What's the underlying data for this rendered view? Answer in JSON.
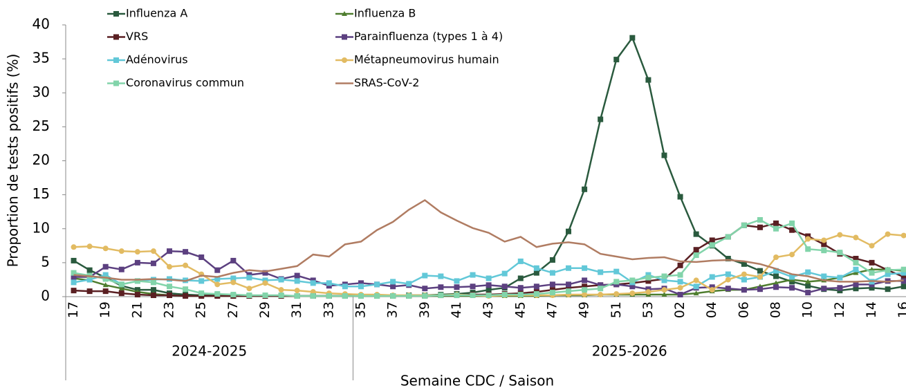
{
  "chart_data": {
    "type": "line",
    "ylabel": "Proportion de tests positifs (%)",
    "xlabel": "Semaine CDC / Saison",
    "ylim": [
      0,
      40
    ],
    "yticks": [
      0,
      5,
      10,
      15,
      20,
      25,
      30,
      35,
      40
    ],
    "groups": [
      {
        "label": "2024-2025",
        "categories": [
          "17",
          null,
          "19",
          null,
          "21",
          null,
          "23",
          null,
          "25",
          null,
          "27",
          null,
          "29",
          null,
          "31",
          null,
          "33",
          null
        ]
      },
      {
        "label": "2025-2026",
        "categories": [
          "35",
          null,
          "37",
          null,
          "39",
          null,
          "41",
          null,
          "43",
          null,
          "45",
          null,
          "47",
          null,
          "49",
          null,
          "51",
          null,
          "53",
          null,
          "02",
          null,
          "04",
          null,
          "06",
          null,
          "08",
          null,
          "10",
          null,
          "12",
          null,
          "14",
          null,
          "16"
        ]
      }
    ],
    "series": [
      {
        "name": "Influenza A",
        "color": "#2a5a3e",
        "marker": "square",
        "values": [
          5.3,
          3.9,
          2.8,
          1.6,
          1.0,
          1.0,
          0.5,
          0.3,
          0.2,
          0.2,
          0.1,
          0.1,
          0.1,
          0.1,
          0.1,
          0.1,
          0.1,
          0.1,
          0.1,
          0.1,
          0.1,
          0.2,
          0.2,
          0.3,
          0.4,
          0.6,
          1.0,
          1.3,
          2.7,
          3.5,
          5.4,
          9.6,
          15.8,
          26.1,
          34.9,
          38.1,
          31.9,
          20.8,
          14.7,
          9.2,
          7.5,
          5.6,
          4.8,
          3.8,
          3.0,
          2.2,
          1.6,
          1.1,
          0.9,
          1.2,
          1.3,
          1.1,
          1.5
        ]
      },
      {
        "name": "Influenza B",
        "color": "#4e7d2e",
        "marker": "triangle",
        "values": [
          2.7,
          2.4,
          1.7,
          1.2,
          0.7,
          0.4,
          0.2,
          0.1,
          0.1,
          0.1,
          0.1,
          0.1,
          0.1,
          0.1,
          0.1,
          0.1,
          0.1,
          0.1,
          0.1,
          0.1,
          0.1,
          0.1,
          0.1,
          0.1,
          0.1,
          0.1,
          0.1,
          0.1,
          0.1,
          0.1,
          0.2,
          0.2,
          0.2,
          0.3,
          0.3,
          0.3,
          0.3,
          0.3,
          0.3,
          0.5,
          0.8,
          1.0,
          1.0,
          1.5,
          2.0,
          2.5,
          2.2,
          2.4,
          2.8,
          3.5,
          4.0,
          4.0,
          3.8
        ]
      },
      {
        "name": "VRS",
        "color": "#5a1f22",
        "marker": "square",
        "values": [
          0.9,
          0.8,
          0.8,
          0.5,
          0.3,
          0.2,
          0.2,
          0.1,
          0.1,
          0.1,
          0.1,
          0.1,
          0.1,
          0.1,
          0.1,
          0.1,
          0.1,
          0.1,
          0.1,
          0.1,
          0.1,
          0.1,
          0.1,
          0.2,
          0.2,
          0.3,
          0.3,
          0.4,
          0.5,
          0.7,
          1.0,
          1.3,
          1.5,
          1.7,
          1.8,
          2.0,
          2.3,
          2.6,
          4.6,
          6.9,
          8.3,
          8.8,
          10.5,
          10.2,
          10.8,
          9.8,
          8.9,
          7.7,
          6.3,
          5.6,
          5.0,
          3.9,
          2.9
        ]
      },
      {
        "name": "Parainfluenza (types 1 à 4)",
        "color": "#5c4080",
        "marker": "square",
        "values": [
          2.9,
          2.9,
          4.4,
          4.0,
          5.0,
          4.9,
          6.7,
          6.6,
          5.8,
          3.9,
          5.3,
          3.2,
          3.5,
          2.6,
          3.1,
          2.4,
          1.6,
          1.8,
          2.0,
          1.8,
          1.5,
          1.7,
          1.2,
          1.4,
          1.4,
          1.5,
          1.7,
          1.5,
          1.3,
          1.5,
          1.8,
          1.8,
          2.4,
          1.7,
          1.8,
          1.5,
          1.1,
          1.2,
          0.3,
          1.3,
          1.4,
          1.2,
          1.0,
          1.1,
          1.4,
          1.3,
          0.6,
          1.2,
          1.3,
          1.8,
          1.8,
          2.3,
          2.3
        ]
      },
      {
        "name": "Adénovirus",
        "color": "#62c8d8",
        "marker": "square",
        "values": [
          2.1,
          2.5,
          3.2,
          1.8,
          2.3,
          2.5,
          2.6,
          2.4,
          2.3,
          2.6,
          2.7,
          2.8,
          2.4,
          2.5,
          2.3,
          2.0,
          2.0,
          1.5,
          1.5,
          1.8,
          2.2,
          1.9,
          3.1,
          3.0,
          2.3,
          3.2,
          2.7,
          3.4,
          5.2,
          4.2,
          3.5,
          4.2,
          4.2,
          3.6,
          3.7,
          2.1,
          3.2,
          2.4,
          2.2,
          1.5,
          2.9,
          3.3,
          2.5,
          2.9,
          3.8,
          2.9,
          3.6,
          3.0,
          2.8,
          4.0,
          2.2,
          3.3,
          3.5
        ]
      },
      {
        "name": "Métapneumovirus humain",
        "color": "#e2bb62",
        "marker": "circle",
        "values": [
          7.3,
          7.4,
          7.1,
          6.7,
          6.6,
          6.7,
          4.4,
          4.6,
          3.3,
          1.8,
          2.1,
          1.2,
          2.0,
          1.0,
          0.9,
          0.7,
          0.5,
          0.4,
          0.3,
          0.3,
          0.2,
          0.2,
          0.2,
          0.2,
          0.3,
          0.2,
          0.1,
          0.2,
          0.2,
          0.2,
          0.2,
          0.3,
          0.3,
          0.3,
          0.4,
          0.5,
          0.7,
          1.0,
          1.3,
          2.4,
          1.0,
          2.5,
          3.3,
          2.9,
          5.8,
          6.2,
          8.5,
          8.3,
          9.1,
          8.7,
          7.5,
          9.2,
          9.0
        ]
      },
      {
        "name": "Coronavirus commun",
        "color": "#82d4aa",
        "marker": "square",
        "values": [
          3.5,
          3.1,
          2.6,
          1.8,
          2.3,
          2.1,
          1.5,
          1.1,
          0.5,
          0.4,
          0.3,
          0.2,
          0.2,
          0.2,
          0.1,
          0.1,
          0.1,
          0.1,
          0.1,
          0.1,
          0.1,
          0.1,
          0.1,
          0.2,
          0.2,
          0.2,
          0.2,
          0.3,
          0.3,
          0.4,
          0.6,
          0.8,
          1.0,
          1.2,
          2.2,
          2.4,
          2.8,
          3.0,
          3.2,
          6.1,
          7.6,
          8.8,
          10.5,
          11.3,
          10.0,
          10.8,
          7.0,
          6.8,
          6.5,
          5.0,
          3.5,
          3.9,
          4.0
        ]
      },
      {
        "name": "SRAS-CoV-2",
        "color": "#b07c62",
        "marker": "none",
        "values": [
          3.2,
          3.0,
          2.8,
          2.5,
          2.5,
          2.6,
          2.5,
          2.3,
          3.1,
          2.9,
          3.5,
          3.9,
          3.7,
          4.1,
          4.5,
          6.2,
          5.9,
          7.7,
          8.1,
          9.8,
          11.0,
          12.8,
          14.2,
          12.4,
          11.2,
          10.1,
          9.4,
          8.1,
          8.8,
          7.3,
          7.8,
          8.0,
          7.7,
          6.3,
          5.9,
          5.5,
          5.7,
          5.8,
          5.2,
          5.1,
          5.3,
          5.4,
          5.2,
          4.8,
          4.1,
          3.3,
          3.0,
          2.4,
          2.2,
          2.2,
          2.3,
          2.2,
          2.4
        ]
      }
    ]
  }
}
